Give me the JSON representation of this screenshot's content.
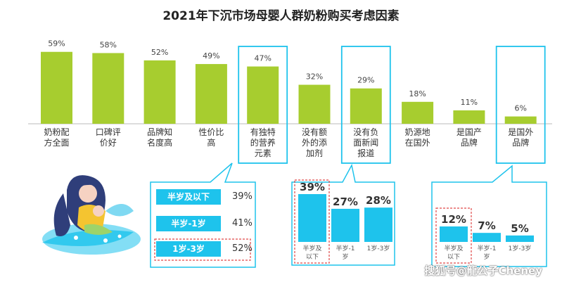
{
  "chart_data": [
    {
      "type": "bar",
      "title": "2021年下沉市场母婴人群奶粉购买考虑因素",
      "categories": [
        [
          "奶粉配",
          "方全面"
        ],
        [
          "口碑评",
          "价好"
        ],
        [
          "品牌知",
          "名度高"
        ],
        [
          "性价比",
          "高"
        ],
        [
          "有独特",
          "的营养",
          "元素"
        ],
        [
          "没有额",
          "外的添",
          "加剂"
        ],
        [
          "没有负",
          "面新闻",
          "报道"
        ],
        [
          "奶源地",
          "在国外"
        ],
        [
          "是国产",
          "品牌"
        ],
        [
          "是国外",
          "品牌"
        ]
      ],
      "values": [
        59,
        58,
        52,
        49,
        47,
        32,
        29,
        18,
        11,
        6
      ],
      "value_labels": [
        "59%",
        "58%",
        "52%",
        "49%",
        "47%",
        "32%",
        "29%",
        "18%",
        "11%",
        "6%"
      ],
      "highlighted": [
        4,
        6,
        9
      ],
      "color": "#a7cd2f",
      "ylim": [
        0,
        60
      ]
    },
    {
      "type": "table",
      "rows": [
        {
          "label": "半岁及以下",
          "value": "39%"
        },
        {
          "label": "半岁-1岁",
          "value": "41%"
        },
        {
          "label": "1岁-3岁",
          "value": "52%"
        }
      ],
      "highlighted": [
        2
      ]
    },
    {
      "type": "bar",
      "categories": [
        [
          "半岁及",
          "以下"
        ],
        [
          "半岁-1",
          "岁"
        ],
        [
          "1岁-3岁"
        ]
      ],
      "values": [
        39,
        27,
        28
      ],
      "value_labels": [
        "39%",
        "27%",
        "28%"
      ],
      "highlighted": [
        0
      ],
      "color": "#1ec3ec"
    },
    {
      "type": "bar",
      "categories": [
        [
          "半岁及",
          "以下"
        ],
        [
          "半岁-1",
          "岁"
        ],
        [
          "1岁-3岁"
        ]
      ],
      "values": [
        12,
        7,
        5
      ],
      "value_labels": [
        "12%",
        "7%",
        "5%"
      ],
      "highlighted": [
        0
      ],
      "color": "#1ec3ec"
    }
  ],
  "watermark": "搜狐号@龍公子Cheney",
  "colors": {
    "bar_green": "#a7cd2f",
    "accent_blue": "#1ec3ec",
    "highlight_red": "#e04848"
  },
  "icons": {
    "illustration": "mother-holding-baby-illustration"
  }
}
